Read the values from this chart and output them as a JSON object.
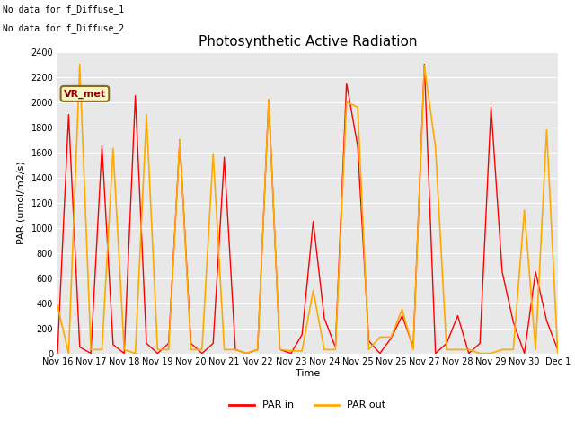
{
  "title": "Photosynthetic Active Radiation",
  "ylabel": "PAR (umol/m2/s)",
  "xlabel": "Time",
  "text_top_left_line1": "No data for f_Diffuse_1",
  "text_top_left_line2": "No data for f_Diffuse_2",
  "legend_box_label": "VR_met",
  "fig_bg_color": "#ffffff",
  "plot_bg_color": "#e8e8e8",
  "ylim": [
    0,
    2400
  ],
  "yticks": [
    0,
    200,
    400,
    600,
    800,
    1000,
    1200,
    1400,
    1600,
    1800,
    2000,
    2200,
    2400
  ],
  "x_tick_labels": [
    "Nov 16",
    "Nov 17",
    "Nov 18",
    "Nov 19",
    "Nov 20",
    "Nov 21",
    "Nov 22",
    "Nov 23",
    "Nov 24",
    "Nov 25",
    "Nov 26",
    "Nov 27",
    "Nov 28",
    "Nov 29",
    "Nov 30",
    "Dec 1"
  ],
  "par_in_color": "#ff0000",
  "par_out_color": "#ffaa00",
  "par_in_label": "PAR in",
  "par_out_label": "PAR out",
  "par_in": [
    0,
    1900,
    50,
    0,
    1650,
    70,
    0,
    2050,
    80,
    0,
    80,
    1700,
    80,
    0,
    80,
    1560,
    30,
    0,
    30,
    2020,
    30,
    0,
    150,
    1050,
    280,
    50,
    2150,
    1650,
    100,
    0,
    120,
    300,
    50,
    2300,
    0,
    80,
    300,
    0,
    80,
    1960,
    650,
    250,
    0,
    650,
    260,
    30
  ],
  "par_out": [
    380,
    0,
    2300,
    30,
    30,
    1630,
    30,
    0,
    1900,
    30,
    30,
    1700,
    30,
    30,
    1590,
    30,
    30,
    0,
    30,
    2020,
    30,
    20,
    20,
    500,
    30,
    30,
    2000,
    1960,
    30,
    130,
    130,
    350,
    30,
    2290,
    1640,
    30,
    30,
    30,
    0,
    0,
    30,
    30,
    1140,
    30,
    1780,
    0
  ],
  "n_days": 15,
  "title_fontsize": 11,
  "label_fontsize": 8,
  "tick_fontsize": 7,
  "legend_fontsize": 8
}
